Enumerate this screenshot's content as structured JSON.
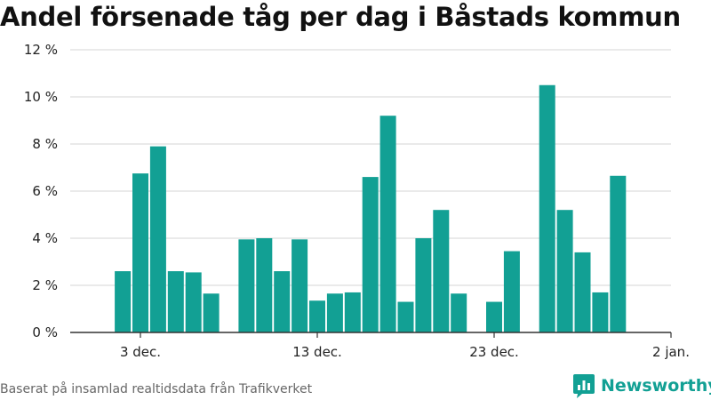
{
  "chart_data": {
    "type": "bar",
    "title": "Andel försenade tåg per dag i Båstads kommun",
    "xlabel": "",
    "ylabel": "",
    "ylim": [
      0,
      12
    ],
    "y_ticks": [
      0,
      2,
      4,
      6,
      8,
      10,
      12
    ],
    "y_tick_labels": [
      "0 %",
      "2 %",
      "4 %",
      "6 %",
      "8 %",
      "10 %",
      "12 %"
    ],
    "x_ticks": [
      {
        "day": 3,
        "label": "3 dec."
      },
      {
        "day": 13,
        "label": "13 dec."
      },
      {
        "day": 23,
        "label": "23 dec."
      },
      {
        "day": 33,
        "label": "2 jan."
      }
    ],
    "bar_color": "#12a094",
    "grid": true,
    "points": [
      {
        "day": 2,
        "value": 2.6
      },
      {
        "day": 3,
        "value": 6.75
      },
      {
        "day": 4,
        "value": 7.9
      },
      {
        "day": 5,
        "value": 2.6
      },
      {
        "day": 6,
        "value": 2.55
      },
      {
        "day": 7,
        "value": 1.65
      },
      {
        "day": 9,
        "value": 3.95
      },
      {
        "day": 10,
        "value": 4.0
      },
      {
        "day": 11,
        "value": 2.6
      },
      {
        "day": 12,
        "value": 3.95
      },
      {
        "day": 13,
        "value": 1.35
      },
      {
        "day": 14,
        "value": 1.65
      },
      {
        "day": 15,
        "value": 1.7
      },
      {
        "day": 16,
        "value": 6.6
      },
      {
        "day": 17,
        "value": 9.2
      },
      {
        "day": 18,
        "value": 1.3
      },
      {
        "day": 19,
        "value": 4.0
      },
      {
        "day": 20,
        "value": 5.2
      },
      {
        "day": 21,
        "value": 1.65
      },
      {
        "day": 23,
        "value": 1.3
      },
      {
        "day": 24,
        "value": 3.45
      },
      {
        "day": 26,
        "value": 10.5
      },
      {
        "day": 27,
        "value": 5.2
      },
      {
        "day": 28,
        "value": 3.4
      },
      {
        "day": 29,
        "value": 1.7
      },
      {
        "day": 30,
        "value": 6.65
      }
    ]
  },
  "footer": {
    "source": "Baserat på insamlad realtidsdata från Trafikverket",
    "brand": "Newsworthy",
    "brand_icon": "bar-chart-bubble-icon"
  }
}
